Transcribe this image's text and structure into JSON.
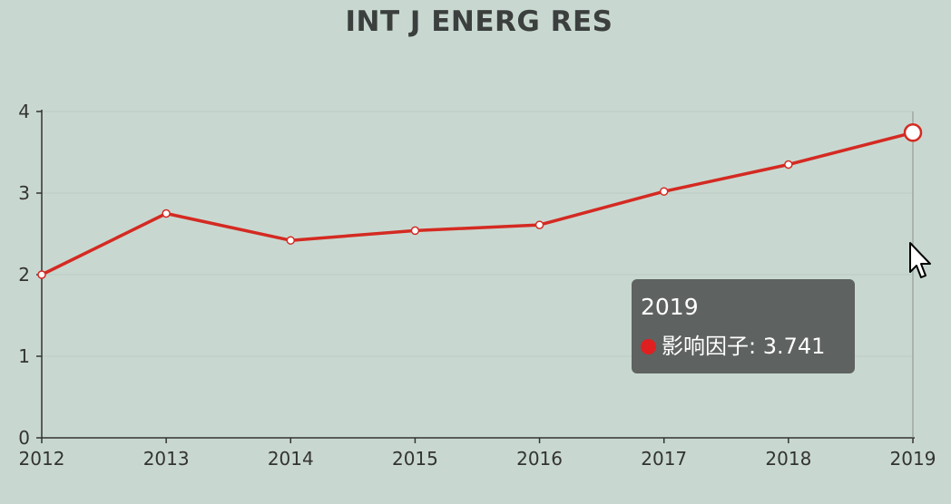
{
  "chart_data": {
    "type": "line",
    "title": "INT J ENERG RES",
    "x": [
      "2012",
      "2013",
      "2014",
      "2015",
      "2016",
      "2017",
      "2018",
      "2019"
    ],
    "series": [
      {
        "name": "影响因子",
        "values": [
          2.0,
          2.75,
          2.42,
          2.54,
          2.61,
          3.02,
          3.35,
          3.741
        ],
        "color": "#d42a22"
      }
    ],
    "ylim": [
      0,
      4
    ],
    "yticks": [
      "0",
      "1",
      "2",
      "3",
      "4"
    ],
    "grid": true,
    "highlight_index": 7
  },
  "tooltip": {
    "year": "2019",
    "label": "影响因子",
    "value": "3.741",
    "text": "影响因子: 3.741"
  },
  "colors": {
    "background": "#c8d8d0",
    "line": "#d42a22",
    "tooltip_bg": "#555856",
    "tooltip_dot": "#e02020"
  },
  "icons": {
    "cursor": "mouse-pointer-icon"
  }
}
